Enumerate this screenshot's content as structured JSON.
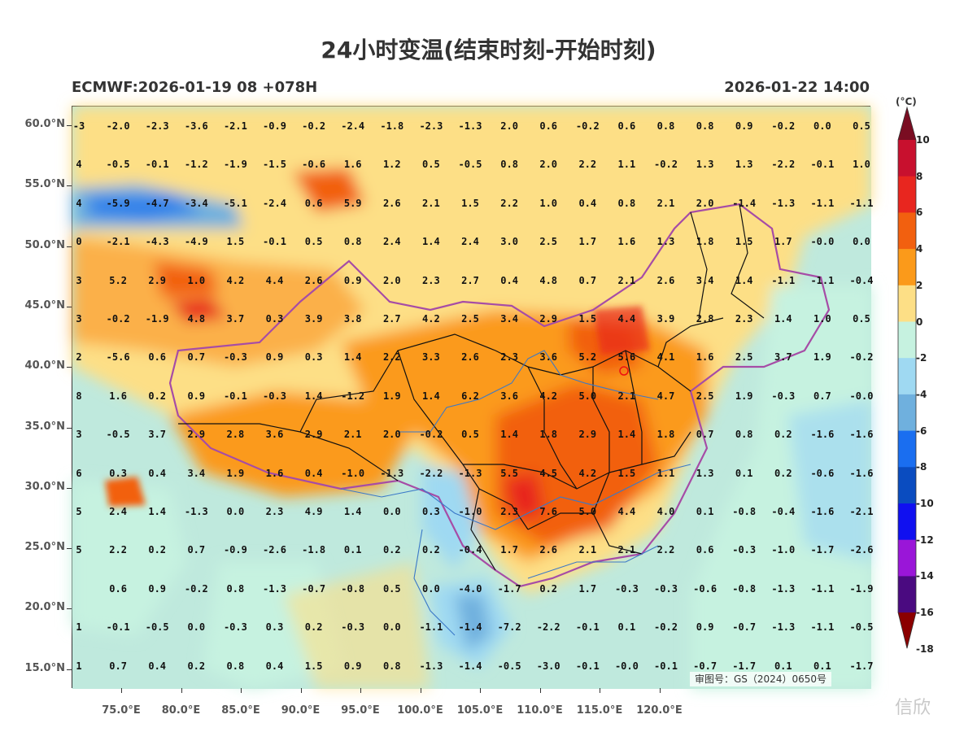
{
  "title": "24小时变温(结束时刻-开始时刻)",
  "subtitle_left": "ECMWF:2026-01-19 08 +078H",
  "subtitle_right": "2026-01-22 14:00",
  "lat_labels": [
    "60.0°N",
    "55.0°N",
    "50.0°N",
    "45.0°N",
    "40.0°N",
    "35.0°N",
    "30.0°N",
    "25.0°N",
    "20.0°N",
    "15.0°N"
  ],
  "lon_labels": [
    "75.0°E",
    "80.0°E",
    "85.0°E",
    "90.0°E",
    "95.0°E",
    "100.0°E",
    "105.0°E",
    "110.0°E",
    "115.0°E",
    "120.0°E"
  ],
  "legend": {
    "unit": "(°C)",
    "labels": [
      "10",
      "8",
      "6",
      "4",
      "2",
      "0",
      "-2",
      "-4",
      "-6",
      "-8",
      "-10",
      "-12",
      "-14",
      "-16",
      "-18"
    ],
    "colors": [
      "#7a0d22",
      "#c8102e",
      "#e8261f",
      "#f2600f",
      "#fb9a1a",
      "#fddf86",
      "#c6f2e0",
      "#9fd9f2",
      "#6fb0de",
      "#1a6ef0",
      "#0a4cc0",
      "#1010f0",
      "#9a16d8",
      "#4a0a80",
      "#8b0000"
    ]
  },
  "approval_text": "审图号：GS（2024）0650号",
  "watermark": "信欣",
  "grid_values": [
    [
      "-3",
      "-2.0",
      "-2.3",
      "-3.6",
      "-2.1",
      "-0.9",
      "-0.2",
      "-2.4",
      "-1.8",
      "-2.3",
      "-1.3",
      "2.0",
      "0.6",
      "-0.2",
      "0.6",
      "0.8",
      "0.8",
      "0.9",
      "-0.2",
      "0.0",
      "0.5"
    ],
    [
      "4",
      "-0.5",
      "-0.1",
      "-1.2",
      "-1.9",
      "-1.5",
      "-0.6",
      "1.6",
      "1.2",
      "0.5",
      "-0.5",
      "0.8",
      "2.0",
      "2.2",
      "1.1",
      "-0.2",
      "1.3",
      "1.3",
      "-2.2",
      "-0.1",
      "1.0"
    ],
    [
      "4",
      "-5.9",
      "-4.7",
      "-3.4",
      "-5.1",
      "-2.4",
      "0.6",
      "5.9",
      "2.6",
      "2.1",
      "1.5",
      "2.2",
      "1.0",
      "0.4",
      "0.8",
      "2.1",
      "2.0",
      "-1.4",
      "-1.3",
      "-1.1",
      "-1.1"
    ],
    [
      "0",
      "-2.1",
      "-4.3",
      "-4.9",
      "1.5",
      "-0.1",
      "0.5",
      "0.8",
      "2.4",
      "1.4",
      "2.4",
      "3.0",
      "2.5",
      "1.7",
      "1.6",
      "1.3",
      "1.8",
      "1.5",
      "1.7",
      "-0.0",
      "0.0"
    ],
    [
      "3",
      "5.2",
      "2.9",
      "1.0",
      "4.2",
      "4.4",
      "2.6",
      "0.9",
      "2.0",
      "2.3",
      "2.7",
      "0.4",
      "4.8",
      "0.7",
      "2.1",
      "2.6",
      "3.4",
      "1.4",
      "-1.1",
      "-1.1",
      "-0.4"
    ],
    [
      "3",
      "-0.2",
      "-1.9",
      "4.8",
      "3.7",
      "0.3",
      "3.9",
      "3.8",
      "2.7",
      "4.2",
      "2.5",
      "3.4",
      "2.9",
      "1.5",
      "4.4",
      "3.9",
      "2.8",
      "2.3",
      "1.4",
      "1.0",
      "0.5"
    ],
    [
      "2",
      "-5.6",
      "0.6",
      "0.7",
      "-0.3",
      "0.9",
      "0.3",
      "1.4",
      "2.2",
      "3.3",
      "2.6",
      "2.3",
      "3.6",
      "5.2",
      "5.6",
      "4.1",
      "1.6",
      "2.5",
      "3.7",
      "1.9",
      "-0.2"
    ],
    [
      "8",
      "1.6",
      "0.2",
      "0.9",
      "-0.1",
      "-0.3",
      "1.4",
      "-1.2",
      "1.9",
      "1.4",
      "6.2",
      "3.6",
      "4.2",
      "5.0",
      "2.1",
      "4.7",
      "2.5",
      "1.9",
      "-0.3",
      "0.7",
      "-0.0"
    ],
    [
      "3",
      "-0.5",
      "3.7",
      "2.9",
      "2.8",
      "3.6",
      "2.9",
      "2.1",
      "2.0",
      "-0.2",
      "0.5",
      "1.4",
      "1.8",
      "2.9",
      "1.4",
      "1.8",
      "0.7",
      "0.8",
      "0.2",
      "-1.6",
      "-1.6"
    ],
    [
      "6",
      "0.3",
      "0.4",
      "3.4",
      "1.9",
      "1.6",
      "0.4",
      "-1.0",
      "-1.3",
      "-2.2",
      "-1.3",
      "5.5",
      "4.5",
      "4.2",
      "1.5",
      "1.1",
      "1.3",
      "0.1",
      "0.2",
      "-0.6",
      "-1.6"
    ],
    [
      "5",
      "2.4",
      "1.4",
      "-1.3",
      "0.0",
      "2.3",
      "4.9",
      "1.4",
      "0.0",
      "0.3",
      "-1.0",
      "2.3",
      "7.6",
      "5.0",
      "4.4",
      "4.0",
      "0.1",
      "-0.8",
      "-0.4",
      "-1.6",
      "-2.1"
    ],
    [
      "5",
      "2.2",
      "0.2",
      "0.7",
      "-0.9",
      "-2.6",
      "-1.8",
      "0.1",
      "0.2",
      "0.2",
      "-0.4",
      "1.7",
      "2.6",
      "2.1",
      "2.1",
      "2.2",
      "0.6",
      "-0.3",
      "-1.0",
      "-1.7",
      "-2.6"
    ],
    [
      "",
      "0.6",
      "0.9",
      "-0.2",
      "0.8",
      "-1.3",
      "-0.7",
      "-0.8",
      "0.5",
      "0.0",
      "-4.0",
      "-1.7",
      "0.2",
      "1.7",
      "-0.3",
      "-0.3",
      "-0.6",
      "-0.8",
      "-1.3",
      "-1.1",
      "-1.9"
    ],
    [
      "1",
      "-0.1",
      "-0.5",
      "0.0",
      "-0.3",
      "0.3",
      "0.2",
      "-0.3",
      "0.0",
      "-1.1",
      "-1.4",
      "-7.2",
      "-2.2",
      "-0.1",
      "0.1",
      "-0.2",
      "0.9",
      "-0.7",
      "-1.3",
      "-1.1",
      "-0.5"
    ],
    [
      "1",
      "0.7",
      "0.4",
      "0.2",
      "0.8",
      "0.4",
      "1.5",
      "0.9",
      "0.8",
      "-1.3",
      "-1.4",
      "-0.5",
      "-3.0",
      "-0.1",
      "-0.0",
      "-0.1",
      "-0.7",
      "-1.7",
      "0.1",
      "0.1",
      "-1.7"
    ]
  ]
}
